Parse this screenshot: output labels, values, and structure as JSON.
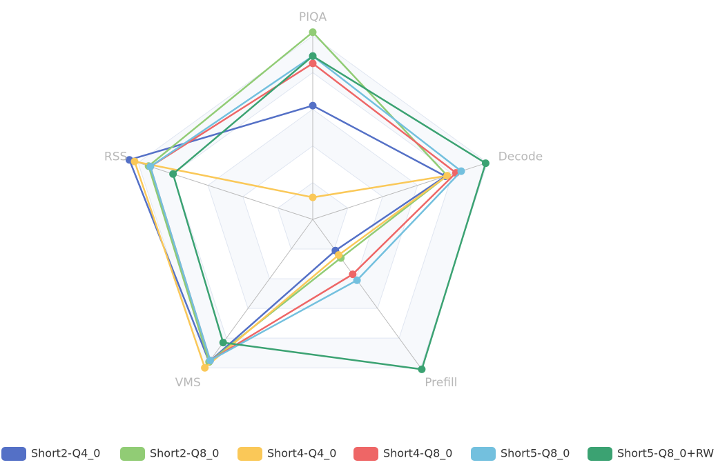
{
  "chart_data": {
    "type": "radar",
    "indicators": [
      "PIQA",
      "Decode",
      "Prefill",
      "VMS",
      "RSS"
    ],
    "max": 1,
    "rings": 5,
    "series": [
      {
        "name": "Short2-Q4_0",
        "color": "#5470c6",
        "values": [
          0.62,
          0.76,
          0.21,
          0.96,
          1.05
        ]
      },
      {
        "name": "Short2-Q8_0",
        "color": "#91cc75",
        "values": [
          1.02,
          0.77,
          0.26,
          0.96,
          0.94
        ]
      },
      {
        "name": "Short4-Q4_0",
        "color": "#fac858",
        "values": [
          0.12,
          0.77,
          0.24,
          1.0,
          1.02
        ]
      },
      {
        "name": "Short4-Q8_0",
        "color": "#ee6666",
        "values": [
          0.85,
          0.82,
          0.37,
          0.95,
          0.93
        ]
      },
      {
        "name": "Short5-Q8_0",
        "color": "#73c0de",
        "values": [
          0.89,
          0.85,
          0.41,
          0.95,
          0.93
        ]
      },
      {
        "name": "Short5-Q8_0+RW",
        "color": "#3ba272",
        "values": [
          0.89,
          0.99,
          1.01,
          0.83,
          0.8
        ]
      }
    ]
  }
}
